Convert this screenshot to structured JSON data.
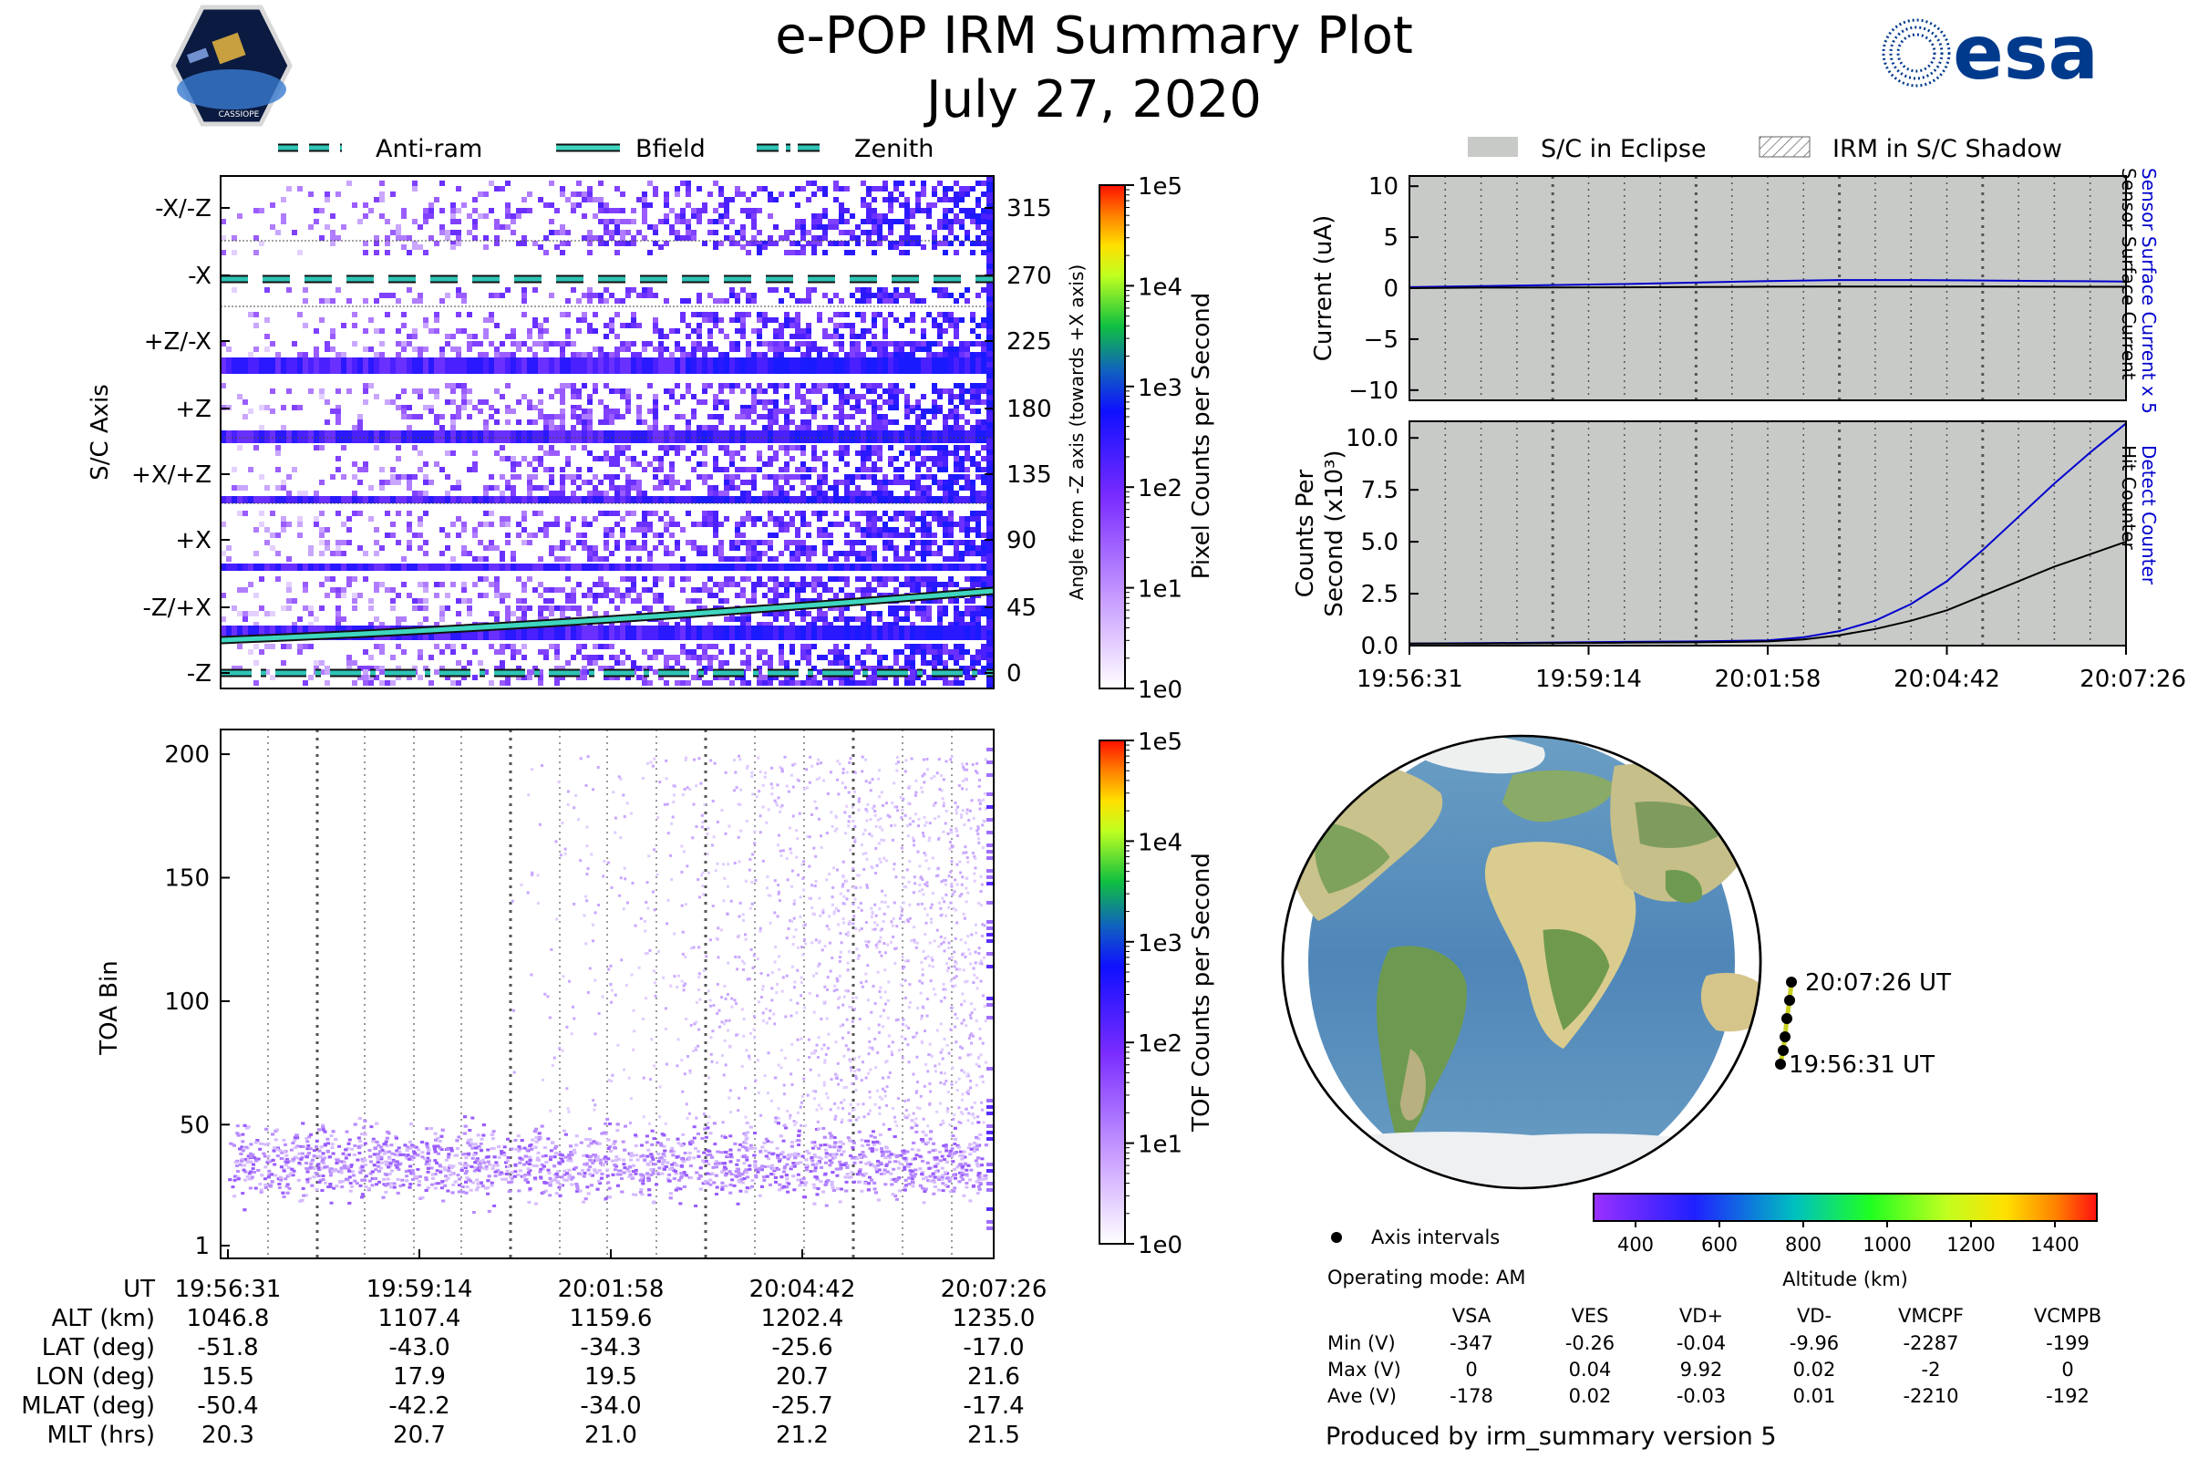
{
  "title": {
    "line1": "e-POP IRM Summary Plot",
    "line2": "July 27, 2020"
  },
  "logos": {
    "esa": "esa",
    "cassiope": "CASSIOPE"
  },
  "legend_top_left": [
    "Anti-ram",
    "Bfield",
    "Zenith"
  ],
  "legend_top_right": [
    "S/C in Eclipse",
    "IRM in S/C Shadow"
  ],
  "colors": {
    "anti_ram": "#2ec4b6",
    "bfield": "#3fd6c0",
    "zenith": "#2ec4b6",
    "eclipse": "#c8cac8",
    "sensor_counter": "#0000cc",
    "hit_counter": "#000000",
    "pixel_low": "#a060ff",
    "pixel_high": "#2020ff",
    "grid": "#888888"
  },
  "time_ticks": [
    "19:56:31",
    "19:59:14",
    "20:01:58",
    "20:04:42",
    "20:07:26"
  ],
  "time_ticks_right": [
    "19:56:31",
    "19:59:14",
    "20:01:58",
    "20:04:42",
    "20:07:26"
  ],
  "pixel_panel": {
    "ylabel": "S/C Axis",
    "right_label": "Angle from -Z axis (towards +X axis)",
    "axis_labels": [
      "-X/-Z",
      "-X",
      "+Z/-X",
      "+Z",
      "+X/+Z",
      "+X",
      "-Z/+X",
      "-Z"
    ],
    "angle_ticks": [
      "315",
      "270",
      "225",
      "180",
      "135",
      "90",
      "45",
      "0"
    ],
    "colorbar_label": "Pixel Counts per Second",
    "colorbar_ticks": [
      "1e5",
      "1e4",
      "1e3",
      "1e2",
      "1e1",
      "1e0"
    ]
  },
  "toa_panel": {
    "ylabel": "TOA Bin",
    "yticks": [
      "200",
      "150",
      "100",
      "50",
      "1"
    ],
    "colorbar_label": "TOF Counts per Second",
    "colorbar_ticks": [
      "1e5",
      "1e4",
      "1e3",
      "1e2",
      "1e1",
      "1e0"
    ]
  },
  "orbit_table": {
    "rows": [
      {
        "label": "UT",
        "values": [
          "19:56:31",
          "19:59:14",
          "20:01:58",
          "20:04:42",
          "20:07:26"
        ]
      },
      {
        "label": "ALT (km)",
        "values": [
          "1046.8",
          "1107.4",
          "1159.6",
          "1202.4",
          "1235.0"
        ]
      },
      {
        "label": "LAT (deg)",
        "values": [
          "-51.8",
          "-43.0",
          "-34.3",
          "-25.6",
          "-17.0"
        ]
      },
      {
        "label": "LON (deg)",
        "values": [
          "15.5",
          "17.9",
          "19.5",
          "20.7",
          "21.6"
        ]
      },
      {
        "label": "MLAT (deg)",
        "values": [
          "-50.4",
          "-42.2",
          "-34.0",
          "-25.7",
          "-17.4"
        ]
      },
      {
        "label": "MLT (hrs)",
        "values": [
          "20.3",
          "20.7",
          "21.0",
          "21.2",
          "21.5"
        ]
      }
    ]
  },
  "chart_data": [
    {
      "type": "line",
      "id": "current",
      "ylabel": "Current (uA)",
      "right_label_1": "Sensor Surface Current x 5",
      "right_label_2": "Sensor Surface Current",
      "ylim": [
        -11,
        11
      ],
      "yticks": [
        "10",
        "5",
        "0",
        "−5",
        "−10"
      ],
      "ytick_values": [
        10,
        5,
        0,
        -5,
        -10
      ],
      "x": [
        0,
        0.1,
        0.2,
        0.3,
        0.4,
        0.5,
        0.6,
        0.7,
        0.8,
        0.9,
        1.0
      ],
      "series": [
        {
          "name": "Sensor Surface Current x 5",
          "values": [
            0.1,
            0.2,
            0.3,
            0.4,
            0.55,
            0.7,
            0.8,
            0.8,
            0.75,
            0.7,
            0.65
          ]
        },
        {
          "name": "Sensor Surface Current",
          "values": [
            0.0,
            0.05,
            0.06,
            0.08,
            0.11,
            0.14,
            0.16,
            0.16,
            0.15,
            0.14,
            0.13
          ]
        }
      ]
    },
    {
      "type": "line",
      "id": "counts",
      "ylabel_1": "Counts Per",
      "ylabel_2": "Second (x10³)",
      "right_label_1": "Detect Counter",
      "right_label_2": "Hit Counter",
      "ylim": [
        0,
        10.8
      ],
      "yticks": [
        "10.0",
        "7.5",
        "5.0",
        "2.5",
        "0.0"
      ],
      "ytick_values": [
        10,
        7.5,
        5,
        2.5,
        0
      ],
      "x": [
        0,
        0.1,
        0.2,
        0.3,
        0.4,
        0.5,
        0.55,
        0.6,
        0.65,
        0.7,
        0.75,
        0.8,
        0.85,
        0.9,
        0.95,
        1.0
      ],
      "series": [
        {
          "name": "Detect Counter",
          "values": [
            0.1,
            0.12,
            0.15,
            0.18,
            0.2,
            0.25,
            0.4,
            0.7,
            1.2,
            2.0,
            3.1,
            4.6,
            6.2,
            7.8,
            9.3,
            10.7
          ]
        },
        {
          "name": "Hit Counter",
          "values": [
            0.1,
            0.1,
            0.12,
            0.14,
            0.16,
            0.2,
            0.3,
            0.5,
            0.8,
            1.2,
            1.7,
            2.4,
            3.1,
            3.8,
            4.4,
            5.0
          ]
        }
      ]
    }
  ],
  "map": {
    "start_label": "19:56:31 UT",
    "end_label": "20:07:26 UT"
  },
  "altitude_colorbar": {
    "label": "Altitude (km)",
    "ticks": [
      "400",
      "600",
      "800",
      "1000",
      "1200",
      "1400"
    ]
  },
  "axis_intervals": "Axis intervals",
  "operating_mode": "Operating mode: AM",
  "voltage_table": {
    "headers": [
      "VSA",
      "VES",
      "VD+",
      "VD-",
      "VMCPF",
      "VCMPB"
    ],
    "rows": [
      {
        "label": "Min (V)",
        "values": [
          "-347",
          "-0.26",
          "-0.04",
          "-9.96",
          "-2287",
          "-199"
        ]
      },
      {
        "label": "Max (V)",
        "values": [
          "0",
          "0.04",
          "9.92",
          "0.02",
          "-2",
          "0"
        ]
      },
      {
        "label": "Ave (V)",
        "values": [
          "-178",
          "0.02",
          "-0.03",
          "0.01",
          "-2210",
          "-192"
        ]
      }
    ]
  },
  "footer": "Produced by irm_summary version 5"
}
